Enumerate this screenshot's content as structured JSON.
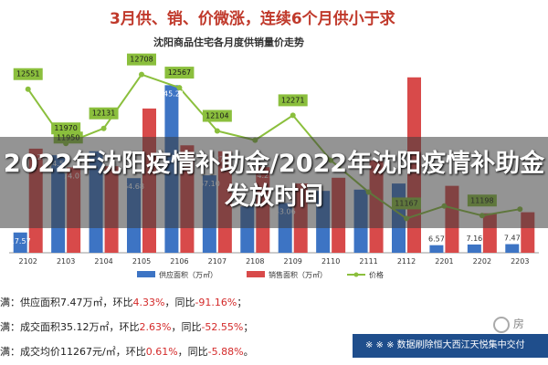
{
  "headline": "3月供、销、价微涨，连续6个月供小于求",
  "overlay_title": "2022年沈阳疫情补助金/2022年沈阳疫情补助金发放时间",
  "summary": [
    {
      "pre": "满：供应面积7.47万㎡，环比",
      "a": "4.33%",
      "mid": "，同比",
      "b": "-91.16%",
      "post": "；"
    },
    {
      "pre": "满：成交面积35.12万㎡，环比",
      "a": "2.63%",
      "mid": "，同比",
      "b": "-52.55%",
      "post": "；"
    },
    {
      "pre": "满：成交均价11267元/㎡，环比",
      "a": "0.61%",
      "mid": "，同比",
      "b": "-5.88%",
      "post": "。"
    }
  ],
  "banner": "※ ※ ※  数据刷除恒大西江天悦集中交付",
  "source": "房",
  "chart_data": {
    "type": "bar",
    "title": "沈阳商品住宅各月度供销量价走势",
    "categories": [
      "2102",
      "2103",
      "2104",
      "2105",
      "2106",
      "2107",
      "2108",
      "2109",
      "2110",
      "2111",
      "2112",
      "2201",
      "2202",
      "2203"
    ],
    "series": [
      {
        "name": "供应面积（万㎡）",
        "kind": "bar",
        "color": "#3d74c4",
        "values": [
          17.57,
          84.51,
          87.98,
          64.68,
          145.21,
          67.1,
          40.1,
          43.06,
          53.63,
          54.7,
          60.0,
          6.57,
          7.16,
          7.47
        ]
      },
      {
        "name": "销售面积（万㎡）",
        "kind": "bar",
        "color": "#d84a4a",
        "values": [
          90.22,
          74.01,
          75.0,
          125.0,
          93.1,
          87.98,
          74.21,
          60.0,
          65.0,
          80.0,
          152.0,
          58.0,
          34.22,
          35.12
        ]
      },
      {
        "name": "价格",
        "kind": "line",
        "color": "#8bbf3d",
        "values": [
          12551,
          11970,
          12131,
          12708,
          12567,
          12104,
          12005,
          12271,
          11790,
          11450,
          11167,
          11300,
          11198,
          11267
        ]
      }
    ],
    "value_labels": [
      {
        "series": 0,
        "index": 0,
        "text": "17.57"
      },
      {
        "series": 0,
        "index": 1,
        "text": "84.51"
      },
      {
        "series": 0,
        "index": 3,
        "text": "64.68"
      },
      {
        "series": 0,
        "index": 4,
        "text": "145.21"
      },
      {
        "series": 0,
        "index": 5,
        "text": "67.10"
      },
      {
        "series": 0,
        "index": 7,
        "text": "43.06"
      },
      {
        "series": 0,
        "index": 11,
        "text": "6.57"
      },
      {
        "series": 0,
        "index": 12,
        "text": "7.16"
      },
      {
        "series": 0,
        "index": 13,
        "text": "7.47"
      },
      {
        "series": 1,
        "index": 0,
        "text": "90.22"
      },
      {
        "series": 1,
        "index": 1,
        "text": "74.01"
      },
      {
        "series": 1,
        "index": 5,
        "text": "87.98"
      },
      {
        "series": 1,
        "index": 6,
        "text": "74.21"
      },
      {
        "series": 2,
        "index": 0,
        "text": "12551"
      },
      {
        "series": 2,
        "index": 1,
        "text": "11970"
      },
      {
        "series": 2,
        "index": 2,
        "text": "12131"
      },
      {
        "series": 2,
        "index": 3,
        "text": "12708"
      },
      {
        "series": 2,
        "index": 4,
        "text": "12567"
      },
      {
        "series": 2,
        "index": 5,
        "text": "12104"
      },
      {
        "series": 2,
        "index": 7,
        "text": "12271"
      },
      {
        "series": 2,
        "index": 10,
        "text": "11167"
      },
      {
        "series": 2,
        "index": 12,
        "text": "11198"
      }
    ],
    "extra_labels": [
      {
        "x_index": 0,
        "text": "11950"
      }
    ],
    "y_bar_range": [
      0,
      170
    ],
    "y_price_range": [
      10800,
      12900
    ],
    "legend_position": "bottom",
    "grid": false
  }
}
